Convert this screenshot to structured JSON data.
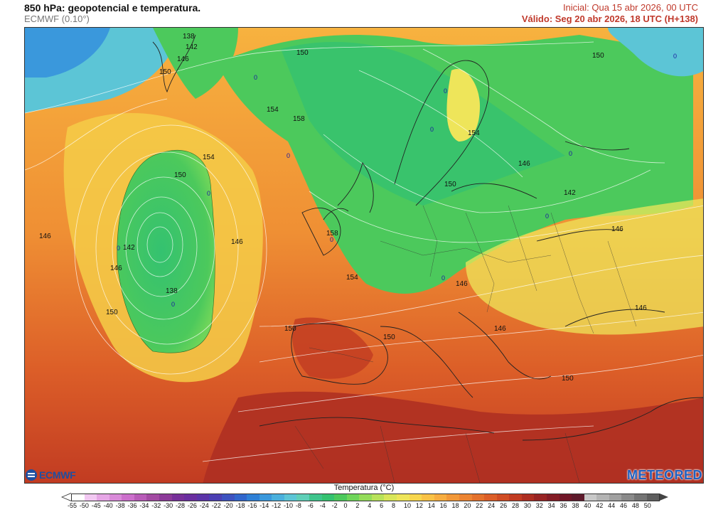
{
  "header": {
    "title": "850 hPa: geopotencial e temperatura.",
    "model": "ECMWF (0.10°)",
    "initial": "Inicial: Qua 15 abr 2026, 00 UTC",
    "valid": "Válido: Seg 20 abr 2026, 18 UTC (H+138)"
  },
  "logos": {
    "left": "ECMWF",
    "right": "METEORED"
  },
  "colorbar": {
    "title": "Temperatura (°C)",
    "ticks": [
      "-55",
      "-50",
      "-45",
      "-40",
      "-38",
      "-36",
      "-34",
      "-32",
      "-30",
      "-28",
      "-26",
      "-24",
      "-22",
      "-20",
      "-18",
      "-16",
      "-14",
      "-12",
      "-10",
      "-8",
      "-6",
      "-4",
      "-2",
      "0",
      "2",
      "4",
      "6",
      "8",
      "10",
      "12",
      "14",
      "16",
      "18",
      "20",
      "22",
      "24",
      "26",
      "28",
      "30",
      "32",
      "34",
      "36",
      "38",
      "40",
      "42",
      "44",
      "46",
      "48",
      "50"
    ],
    "colors": [
      "#ffffff",
      "#f2c8f2",
      "#e6a6e6",
      "#d98ad9",
      "#cc6fcc",
      "#b85bb8",
      "#a34aa3",
      "#8c3a99",
      "#77309a",
      "#6a2ea0",
      "#5b34a8",
      "#4b3fb3",
      "#3d52c0",
      "#3166cc",
      "#2f80d6",
      "#3a98dc",
      "#4ab0dd",
      "#5cc5d6",
      "#5fcfb8",
      "#3ec48c",
      "#34c270",
      "#4cc95c",
      "#6fd55a",
      "#94dc5a",
      "#b8e25a",
      "#d8e65a",
      "#eee55a",
      "#f7d64e",
      "#f9c246",
      "#f7ad40",
      "#f29838",
      "#ec8432",
      "#e4712c",
      "#dc5e28",
      "#d04c24",
      "#c13b22",
      "#ad2e22",
      "#982424",
      "#841c26",
      "#701628",
      "#5e1a2c",
      "#c8c8c8",
      "#b4b4b4",
      "#a0a0a0",
      "#8a8a8a",
      "#747474",
      "#5e5e5e"
    ],
    "arrow_colors": [
      "#ffffff",
      "#444444"
    ]
  },
  "map": {
    "isohypse_labels": [
      "138",
      "142",
      "146",
      "150",
      "150",
      "154",
      "158",
      "150",
      "154",
      "150",
      "146",
      "146",
      "142",
      "146",
      "154",
      "150",
      "142",
      "146",
      "138",
      "150",
      "158",
      "154",
      "146",
      "150",
      "150",
      "146",
      "146",
      "150"
    ],
    "low_markers": [
      "0",
      "0",
      "0",
      "0",
      "0",
      "0",
      "0",
      "0",
      "0",
      "0",
      "0",
      "0"
    ]
  }
}
